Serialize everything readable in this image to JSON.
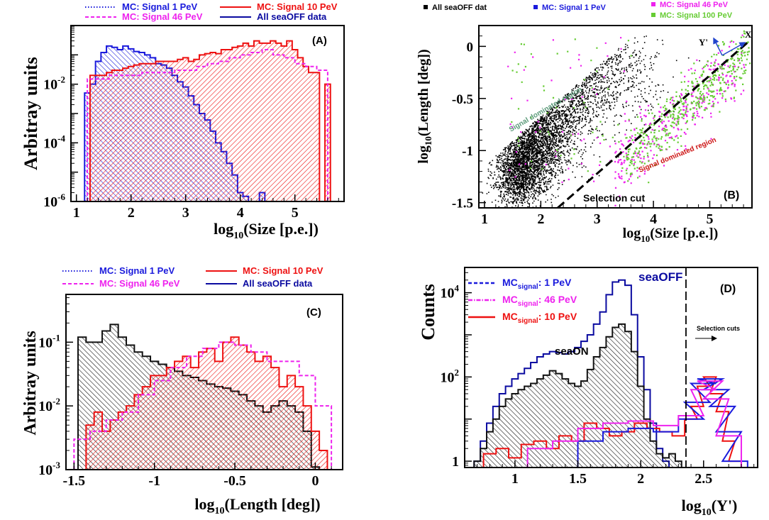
{
  "colors": {
    "blue": "#1a1adc",
    "red": "#ee1111",
    "magenta": "#ee22ee",
    "green": "#66cc33",
    "navy": "#0a0aa0",
    "black": "#000000"
  },
  "chart_data": [
    {
      "id": "A",
      "type": "area",
      "panel_label": "(A)",
      "xlabel_main": "log",
      "xlabel_sub": "10",
      "xlabel_rest": "(Size [p.e.])",
      "ylabel": "Arbitray units",
      "xlim": [
        0.9,
        5.9
      ],
      "ylim_log10": [
        -6,
        0
      ],
      "yscale": "log",
      "xticks": [
        1,
        2,
        3,
        4,
        5
      ],
      "yticks": [
        {
          "p": -2,
          "label": "10",
          "sup": "-2"
        },
        {
          "p": -4,
          "label": "10",
          "sup": "-4"
        },
        {
          "p": -6,
          "label": "10",
          "sup": "-6"
        }
      ],
      "legend": [
        {
          "label": "MC: Signal 1 PeV",
          "style": "dotted",
          "color": "#1a1adc"
        },
        {
          "label": "MC: Signal 10 PeV",
          "style": "solid",
          "color": "#ee1111"
        },
        {
          "label": "MC: Signal 46 PeV",
          "style": "dashed",
          "color": "#ee22ee"
        },
        {
          "label": "All seaOFF data",
          "style": "solid",
          "color": "#0a0aa0"
        }
      ],
      "series": [
        {
          "color": "#1a1adc",
          "style": "solid",
          "hatch": "back",
          "x": [
            1.2,
            1.3,
            1.4,
            1.5,
            1.6,
            1.7,
            1.8,
            1.9,
            2.0,
            2.1,
            2.2,
            2.3,
            2.4,
            2.5,
            2.6,
            2.7,
            2.8,
            2.9,
            3.0,
            3.1,
            3.2,
            3.3,
            3.4,
            3.5,
            3.6,
            3.7,
            3.8,
            3.9,
            4.0,
            4.1,
            4.2,
            4.3,
            4.4,
            4.5
          ],
          "y": [
            0.005,
            0.01,
            0.06,
            0.12,
            0.2,
            0.18,
            0.15,
            0.2,
            0.16,
            0.13,
            0.12,
            0.1,
            0.08,
            0.05,
            0.045,
            0.035,
            0.02,
            0.012,
            0.008,
            0.004,
            0.002,
            0.001,
            0.0006,
            0.00025,
            0.0001,
            5e-05,
            2e-05,
            8e-06,
            2e-06,
            1.5e-06,
            8e-07,
            8e-07,
            2e-06,
            6e-07
          ]
        },
        {
          "color": "#ee1111",
          "style": "solid",
          "hatch": "fwd",
          "x": [
            1.2,
            1.3,
            1.4,
            1.5,
            1.6,
            1.7,
            1.8,
            1.9,
            2.0,
            2.1,
            2.2,
            2.3,
            2.4,
            2.5,
            2.6,
            2.7,
            2.8,
            2.9,
            3.0,
            3.1,
            3.2,
            3.3,
            3.4,
            3.5,
            3.6,
            3.7,
            3.8,
            3.9,
            4.0,
            4.1,
            4.2,
            4.3,
            4.4,
            4.5,
            4.6,
            4.7,
            4.8,
            4.9,
            5.0,
            5.1,
            5.2,
            5.3,
            5.4,
            5.5,
            5.6,
            5.7
          ],
          "y": [
            5e-07,
            0.02,
            0.02,
            0.02,
            0.025,
            0.03,
            0.03,
            0.035,
            0.04,
            0.045,
            0.05,
            0.05,
            0.05,
            0.06,
            0.06,
            0.06,
            0.06,
            0.07,
            0.08,
            0.06,
            0.07,
            0.1,
            0.11,
            0.12,
            0.11,
            0.15,
            0.15,
            0.18,
            0.2,
            0.25,
            0.2,
            0.3,
            0.25,
            0.25,
            0.3,
            0.25,
            0.2,
            0.3,
            0.15,
            0.08,
            0.04,
            0.025,
            0.025,
            5e-07,
            0.01,
            5e-07
          ]
        },
        {
          "color": "#ee22ee",
          "style": "dashed",
          "hatch": null,
          "x": [
            1.3,
            1.5,
            1.7,
            1.9,
            2.1,
            2.3,
            2.5,
            2.7,
            2.9,
            3.1,
            3.3,
            3.5,
            3.7,
            3.9,
            4.1,
            4.3,
            4.5,
            4.7,
            4.9,
            5.1,
            5.3,
            5.5
          ],
          "y": [
            0.015,
            0.015,
            0.02,
            0.02,
            0.02,
            0.025,
            0.025,
            0.025,
            0.03,
            0.03,
            0.04,
            0.05,
            0.06,
            0.08,
            0.1,
            0.12,
            0.15,
            0.1,
            0.08,
            0.05,
            0.04,
            0.03
          ]
        }
      ]
    },
    {
      "id": "B",
      "type": "scatter",
      "panel_label": "(B)",
      "xlabel_main": "log",
      "xlabel_sub": "10",
      "xlabel_rest": "(Size [p.e.])",
      "ylabel_main": "log",
      "ylabel_sub": "10",
      "ylabel_rest": "(Length [deg])",
      "xlim": [
        0.9,
        5.75
      ],
      "ylim": [
        -1.55,
        0.2
      ],
      "xticks": [
        1,
        2,
        3,
        4,
        5
      ],
      "yticks": [
        0,
        -0.5,
        -1,
        -1.5
      ],
      "legend": [
        {
          "label": "All  seaOFF dat",
          "color": "#000000"
        },
        {
          "label": "MC: Signal 1 PeV",
          "color": "#1a1adc"
        },
        {
          "label": "MC: Signal 46 PeV",
          "color": "#ee22ee"
        },
        {
          "label": "MC: Signal 100  PeV",
          "color": "#66cc33"
        }
      ],
      "annotations": {
        "signal_region_upper": "Signal dominated region",
        "signal_region_lower": "Signal dominated region",
        "cut": "Selection cut",
        "axis_x": "X",
        "axis_y": "Y'"
      },
      "cut_line": {
        "x": [
          2.3,
          5.7
        ],
        "y": [
          -1.55,
          0.05
        ]
      },
      "black_cloud": [
        {
          "x": 1.6,
          "y": -1.2,
          "sx": 0.22,
          "sy": 0.18,
          "n": 1600
        },
        {
          "x": 1.9,
          "y": -0.95,
          "sx": 0.25,
          "sy": 0.2,
          "n": 1600
        },
        {
          "x": 2.3,
          "y": -0.45,
          "sx": 0.35,
          "sy": 0.32,
          "n": 2000
        },
        {
          "x": 2.5,
          "y": -0.05,
          "sx": 0.3,
          "sy": 0.12,
          "n": 1800
        },
        {
          "x": 3.1,
          "y": -0.3,
          "sx": 0.5,
          "sy": 0.22,
          "n": 700
        }
      ],
      "green_band": {
        "x": [
          3.5,
          5.7
        ],
        "y0": -1.05,
        "slope": 0.45,
        "spread": 0.14,
        "n": 450
      },
      "magenta_band": {
        "x": [
          3.3,
          5.6
        ],
        "y0": -1.1,
        "slope": 0.45,
        "spread": 0.16,
        "n": 300
      }
    },
    {
      "id": "C",
      "type": "area",
      "panel_label": "(C)",
      "xlabel_main": "log",
      "xlabel_sub": "10",
      "xlabel_rest": "(Length [deg])",
      "ylabel": "Arbitray units",
      "xlim": [
        -1.55,
        0.17
      ],
      "ylim_log10": [
        -3,
        -0.25
      ],
      "yscale": "log",
      "xticks": [
        -1.5,
        -1,
        -0.5,
        0
      ],
      "xticklabels": [
        "-1.5",
        "-1",
        "-0.5",
        "0"
      ],
      "yticks": [
        {
          "p": -1,
          "label": "10",
          "sup": "-1"
        },
        {
          "p": -2,
          "label": "10",
          "sup": "-2"
        },
        {
          "p": -3,
          "label": "10",
          "sup": "-3"
        }
      ],
      "legend": [
        {
          "label": "MC: Signal 1 PeV",
          "style": "dotted",
          "color": "#1a1adc"
        },
        {
          "label": "MC: Signal 10 PeV",
          "style": "solid",
          "color": "#ee1111"
        },
        {
          "label": "MC: Signal 46 PeV",
          "style": "dashed",
          "color": "#ee22ee"
        },
        {
          "label": "All seaOFF data",
          "style": "solid",
          "color": "#0a0aa0"
        }
      ],
      "series": [
        {
          "color": "#111111",
          "style": "solid",
          "hatch": "back",
          "x": [
            -1.45,
            -1.4,
            -1.35,
            -1.3,
            -1.25,
            -1.2,
            -1.15,
            -1.1,
            -1.05,
            -1.0,
            -0.95,
            -0.9,
            -0.85,
            -0.8,
            -0.75,
            -0.7,
            -0.65,
            -0.6,
            -0.55,
            -0.5,
            -0.45,
            -0.4,
            -0.35,
            -0.3,
            -0.25,
            -0.2,
            -0.15,
            -0.1,
            -0.05,
            0.0
          ],
          "y": [
            0.12,
            0.1,
            0.1,
            0.15,
            0.19,
            0.12,
            0.09,
            0.07,
            0.06,
            0.05,
            0.045,
            0.04,
            0.035,
            0.03,
            0.028,
            0.025,
            0.022,
            0.02,
            0.019,
            0.017,
            0.015,
            0.012,
            0.01,
            0.008,
            0.01,
            0.012,
            0.01,
            0.008,
            0.004,
            0.0011
          ]
        },
        {
          "color": "#ee1111",
          "style": "solid",
          "hatch": "fwd",
          "x": [
            -1.45,
            -1.4,
            -1.35,
            -1.3,
            -1.25,
            -1.2,
            -1.15,
            -1.1,
            -1.05,
            -1.0,
            -0.95,
            -0.9,
            -0.85,
            -0.8,
            -0.75,
            -0.7,
            -0.65,
            -0.6,
            -0.55,
            -0.5,
            -0.45,
            -0.4,
            -0.35,
            -0.3,
            -0.25,
            -0.2,
            -0.15,
            -0.1,
            -0.05,
            0.0,
            0.05,
            0.1
          ],
          "y": [
            0.001,
            0.005,
            0.008,
            0.004,
            0.006,
            0.008,
            0.01,
            0.015,
            0.02,
            0.03,
            0.03,
            0.04,
            0.05,
            0.06,
            0.04,
            0.07,
            0.08,
            0.05,
            0.1,
            0.12,
            0.09,
            0.07,
            0.05,
            0.06,
            0.04,
            0.02,
            0.03,
            0.02,
            0.01,
            0.004,
            0.002,
            0.001
          ]
        },
        {
          "color": "#ee22ee",
          "style": "dashed",
          "hatch": null,
          "x": [
            -1.45,
            -1.35,
            -1.25,
            -1.15,
            -1.05,
            -0.95,
            -0.85,
            -0.75,
            -0.65,
            -0.55,
            -0.45,
            -0.35,
            -0.25,
            -0.15,
            -0.05,
            0.05
          ],
          "y": [
            0.003,
            0.004,
            0.006,
            0.008,
            0.015,
            0.025,
            0.04,
            0.06,
            0.08,
            0.1,
            0.09,
            0.07,
            0.05,
            0.05,
            0.03,
            0.01
          ]
        }
      ]
    },
    {
      "id": "D",
      "type": "line",
      "panel_label": "(D)",
      "xlabel_main": "log",
      "xlabel_sub": "10",
      "xlabel_rest": "(Y')",
      "ylabel": "Counts",
      "xlim": [
        0.6,
        2.93
      ],
      "ylim_log10": [
        -0.15,
        4.6
      ],
      "yscale": "log",
      "xticks": [
        1,
        1.5,
        2,
        2.5
      ],
      "yticks": [
        {
          "p": 4,
          "label": "10",
          "sup": "4"
        },
        {
          "p": 2,
          "label": "10",
          "sup": "2"
        },
        {
          "p": 0,
          "label": "1",
          "sup": ""
        }
      ],
      "legend": [
        {
          "main": "MC",
          "sub": "signal",
          "rest": ": 1 PeV",
          "style": "dashed",
          "color": "#1a1adc"
        },
        {
          "main": "MC",
          "sub": "signal",
          "rest": ": 46  PeV",
          "style": "dashdot",
          "color": "#ee22ee"
        },
        {
          "main": "MC",
          "sub": "signal",
          "rest": ": 10 PeV",
          "style": "solid",
          "color": "#ee1111"
        }
      ],
      "annotations": {
        "seaOFF": "seaOFF",
        "seaON": "seaON",
        "cut": "Selection cuts"
      },
      "cut_x": 2.36,
      "series": [
        {
          "name": "seaOFF",
          "color": "#0a0aa0",
          "hatch": null,
          "x": [
            0.7,
            0.75,
            0.8,
            0.85,
            0.9,
            0.95,
            1.0,
            1.05,
            1.1,
            1.15,
            1.2,
            1.25,
            1.3,
            1.35,
            1.4,
            1.45,
            1.5,
            1.55,
            1.6,
            1.65,
            1.7,
            1.75,
            1.8,
            1.85,
            1.9,
            1.95,
            2.0,
            2.05,
            2.1,
            2.15,
            2.2
          ],
          "y": [
            1,
            3,
            8,
            20,
            40,
            60,
            90,
            120,
            160,
            220,
            300,
            350,
            400,
            380,
            350,
            400,
            500,
            700,
            1000,
            1800,
            3500,
            9000,
            18000,
            20000,
            15000,
            3000,
            300,
            50,
            8,
            2,
            1
          ]
        },
        {
          "name": "seaON",
          "color": "#111111",
          "hatch": "back",
          "x": [
            0.7,
            0.75,
            0.8,
            0.85,
            0.9,
            0.95,
            1.0,
            1.05,
            1.1,
            1.15,
            1.2,
            1.25,
            1.3,
            1.35,
            1.4,
            1.45,
            1.5,
            1.55,
            1.6,
            1.65,
            1.7,
            1.75,
            1.8,
            1.85,
            1.9,
            1.95,
            2.0,
            2.05,
            2.1,
            2.15,
            2.2,
            2.25,
            2.3
          ],
          "y": [
            1,
            2,
            5,
            10,
            20,
            30,
            40,
            50,
            60,
            70,
            90,
            110,
            140,
            120,
            90,
            70,
            60,
            80,
            150,
            300,
            500,
            900,
            1500,
            1800,
            1200,
            400,
            60,
            10,
            3,
            1.5,
            1.2,
            1.5,
            1.0
          ]
        },
        {
          "name": "MC 10 PeV",
          "color": "#ee1111",
          "hatch": null,
          "x": [
            0.8,
            0.9,
            1.0,
            1.1,
            1.2,
            1.3,
            1.4,
            1.5,
            1.6,
            1.7,
            1.8,
            1.9,
            2.0,
            2.1,
            2.2,
            2.3,
            2.4,
            2.45,
            2.5,
            2.55,
            2.6,
            2.65,
            2.7,
            2.75
          ],
          "y": [
            1.5,
            2,
            1.2,
            2.5,
            3,
            2,
            4,
            3,
            8,
            6,
            4,
            5,
            8,
            6,
            5,
            4,
            10,
            20,
            60,
            100,
            40,
            15,
            3,
            1
          ]
        },
        {
          "name": "MC 1 PeV",
          "color": "#1a1adc",
          "hatch": null,
          "x": [
            1.6,
            1.8,
            2.0,
            2.2,
            2.4,
            2.45,
            2.5,
            2.55,
            2.6,
            2.65,
            2.7,
            2.75
          ],
          "y": [
            3,
            5,
            6,
            5,
            10,
            25,
            70,
            90,
            50,
            20,
            5,
            1
          ]
        },
        {
          "name": "MC 46 PeV",
          "color": "#ee22ee",
          "hatch": null,
          "x": [
            1.2,
            1.4,
            1.6,
            1.8,
            2.0,
            2.2,
            2.4,
            2.5,
            2.55,
            2.6,
            2.7
          ],
          "y": [
            2,
            3,
            6,
            8,
            9,
            7,
            12,
            50,
            80,
            30,
            4
          ]
        }
      ]
    }
  ]
}
